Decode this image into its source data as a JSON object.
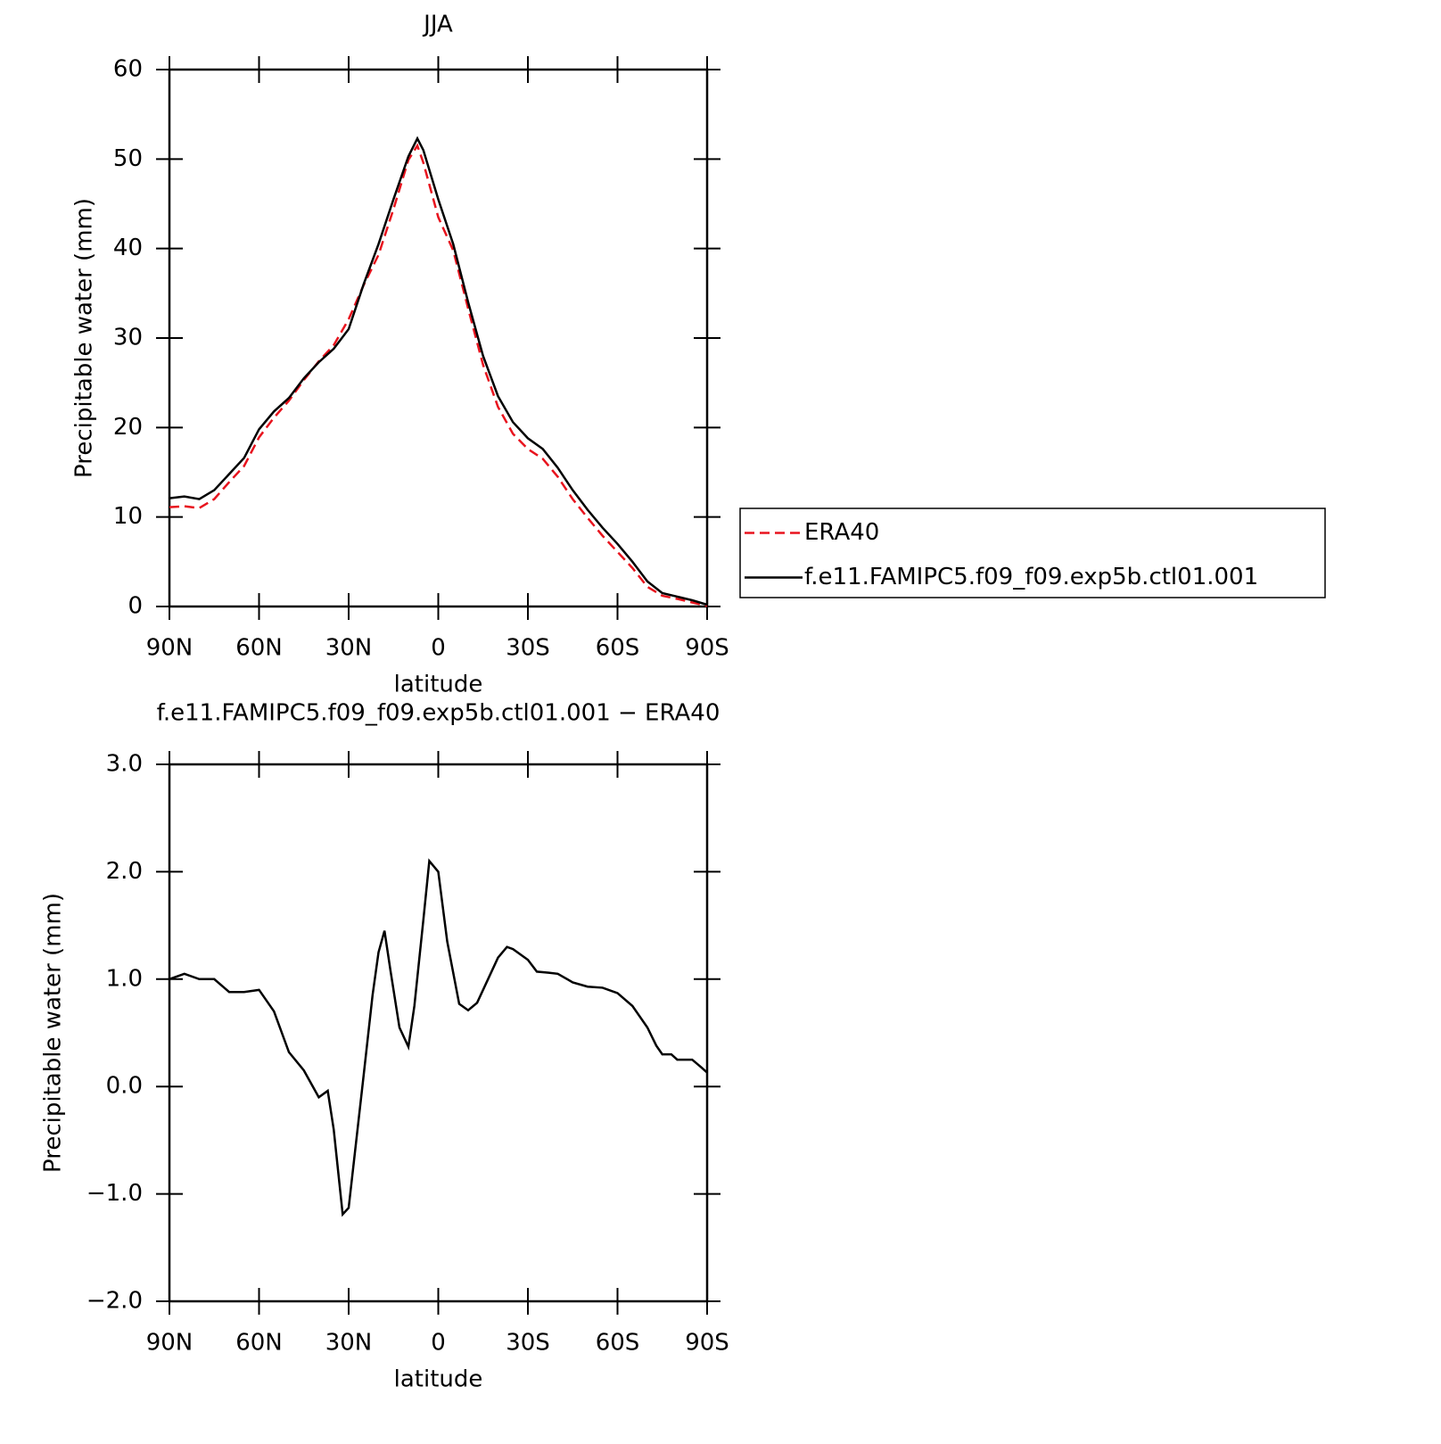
{
  "chart_data": [
    {
      "type": "line",
      "title": "JJA",
      "xlabel": "latitude",
      "ylabel": "Precipitable water (mm)",
      "x": [
        90,
        85,
        80,
        75,
        70,
        65,
        60,
        55,
        50,
        45,
        40,
        35,
        30,
        25,
        20,
        15,
        10,
        7,
        5,
        0,
        -5,
        -10,
        -15,
        -20,
        -25,
        -30,
        -35,
        -40,
        -45,
        -50,
        -55,
        -60,
        -65,
        -70,
        -75,
        -80,
        -85,
        -90
      ],
      "series": [
        {
          "name": "ERA40",
          "color": "#e8141e",
          "line_style": "dashed",
          "values": [
            11.1,
            11.2,
            11.0,
            12.0,
            13.9,
            15.7,
            18.9,
            21.1,
            23.0,
            25.3,
            27.4,
            29.2,
            32.1,
            35.9,
            39.3,
            44.4,
            49.9,
            51.5,
            49.6,
            43.5,
            39.8,
            33.3,
            27.0,
            22.3,
            19.3,
            17.6,
            16.5,
            14.5,
            12.0,
            9.9,
            7.9,
            6.1,
            4.3,
            2.2,
            1.2,
            0.85,
            0.45,
            0.07
          ]
        },
        {
          "name": "f.e11.FAMIPC5.f09_f09.exp5b.ctl01.001",
          "color": "#000000",
          "line_style": "solid",
          "values": [
            12.1,
            12.3,
            12.0,
            13.0,
            14.8,
            16.6,
            19.8,
            21.8,
            23.3,
            25.5,
            27.3,
            28.8,
            31.0,
            36.0,
            40.5,
            45.5,
            50.3,
            52.3,
            51.0,
            45.5,
            40.5,
            34.0,
            28.0,
            23.5,
            20.6,
            18.8,
            17.6,
            15.5,
            13.0,
            10.8,
            8.8,
            7.0,
            5.0,
            2.8,
            1.5,
            1.1,
            0.7,
            0.2
          ]
        }
      ],
      "xlim": [
        90,
        -90
      ],
      "xticks": [
        {
          "value": 90,
          "label": "90N"
        },
        {
          "value": 60,
          "label": "60N"
        },
        {
          "value": 30,
          "label": "30N"
        },
        0,
        {
          "value": -30,
          "label": "30S"
        },
        {
          "value": -60,
          "label": "60S"
        },
        {
          "value": -90,
          "label": "90S"
        }
      ],
      "ylim": [
        0,
        60
      ],
      "yticks": [
        0,
        10,
        20,
        30,
        40,
        50,
        60
      ],
      "legend": "right"
    },
    {
      "type": "line",
      "title": "f.e11.FAMIPC5.f09_f09.exp5b.ctl01.001 − ERA40",
      "xlabel": "latitude",
      "ylabel": "Precipitable water (mm)",
      "x": [
        90,
        85,
        80,
        75,
        70,
        65,
        60,
        55,
        50,
        45,
        40,
        37,
        35,
        32,
        30,
        25,
        22,
        20,
        18,
        16,
        13,
        10,
        8,
        5,
        3,
        0,
        -3,
        -7,
        -10,
        -13,
        -20,
        -23,
        -25,
        -30,
        -33,
        -37,
        -40,
        -45,
        -50,
        -55,
        -60,
        -65,
        -70,
        -73,
        -75,
        -78,
        -80,
        -85,
        -88,
        -90
      ],
      "series": [
        {
          "color": "#000000",
          "line_style": "solid",
          "values": [
            1.0,
            1.05,
            1.0,
            1.0,
            0.88,
            0.88,
            0.9,
            0.7,
            0.32,
            0.15,
            -0.1,
            -0.04,
            -0.4,
            -1.19,
            -1.13,
            0.1,
            0.85,
            1.25,
            1.45,
            1.08,
            0.55,
            0.37,
            0.75,
            1.55,
            2.1,
            2.0,
            1.35,
            0.77,
            0.71,
            0.78,
            1.2,
            1.3,
            1.28,
            1.18,
            1.07,
            1.06,
            1.05,
            0.97,
            0.93,
            0.92,
            0.87,
            0.75,
            0.55,
            0.38,
            0.3,
            0.3,
            0.25,
            0.25,
            0.18,
            0.13
          ]
        }
      ],
      "xlim": [
        90,
        -90
      ],
      "xticks": [
        {
          "value": 90,
          "label": "90N"
        },
        {
          "value": 60,
          "label": "60N"
        },
        {
          "value": 30,
          "label": "30N"
        },
        0,
        {
          "value": -30,
          "label": "30S"
        },
        {
          "value": -60,
          "label": "60S"
        },
        {
          "value": -90,
          "label": "90S"
        }
      ],
      "ylim": [
        -2,
        3
      ],
      "yticks": [
        {
          "value": -2,
          "label": "−2.0"
        },
        {
          "value": -1,
          "label": "−1.0"
        },
        {
          "value": 0,
          "label": "0.0"
        },
        {
          "value": 1,
          "label": "1.0"
        },
        {
          "value": 2,
          "label": "2.0"
        },
        {
          "value": 3,
          "label": "3.0"
        }
      ]
    }
  ]
}
